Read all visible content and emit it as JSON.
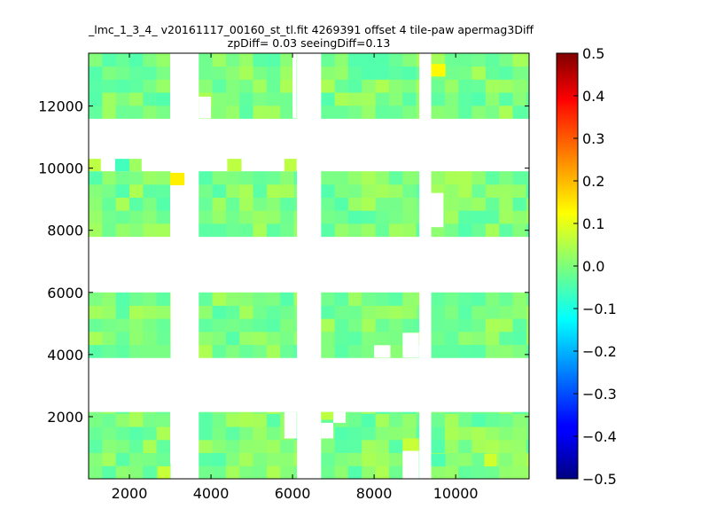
{
  "chart_data": {
    "type": "heatmap",
    "title": "_lmc_1_3_4_ v20161117_00160_st_tl.fit 4269391 offset 4 tile-paw apermag3Diff",
    "subtitle": "zpDiff= 0.03 seeingDiff=0.13",
    "xlabel": "",
    "ylabel": "",
    "xlim": [
      1000,
      11800
    ],
    "ylim": [
      0,
      13700
    ],
    "xticks": [
      2000,
      4000,
      6000,
      8000,
      10000
    ],
    "yticks": [
      2000,
      4000,
      6000,
      8000,
      10000,
      12000
    ],
    "colormap": "jet",
    "colorbar": {
      "range": [
        -0.5,
        0.5
      ],
      "ticks": [
        "0.5",
        "0.4",
        "0.3",
        "0.2",
        "0.1",
        "0.0",
        "−0.1",
        "−0.2",
        "−0.3",
        "−0.4",
        "−0.5"
      ],
      "tick_values": [
        0.5,
        0.4,
        0.3,
        0.2,
        0.1,
        0.0,
        -0.1,
        -0.2,
        -0.3,
        -0.4,
        -0.5
      ]
    },
    "base_value": 0.0,
    "tile_columns": [
      {
        "x0": 1000,
        "x1": 3000
      },
      {
        "x0": 3700,
        "x1": 6100
      },
      {
        "x0": 6700,
        "x1": 9100
      },
      {
        "x0": 9400,
        "x1": 11800
      }
    ],
    "tile_rows": [
      {
        "y0": 0,
        "y1": 2150
      },
      {
        "y0": 3900,
        "y1": 6000
      },
      {
        "y0": 7800,
        "y1": 9900
      },
      {
        "y0": 11600,
        "y1": 13700
      }
    ],
    "notches": [
      {
        "x0": 3000,
        "x1": 3400,
        "y0": 11600,
        "y1": 13700
      },
      {
        "x0": 3700,
        "x1": 4000,
        "y0": 11600,
        "y1": 12300
      },
      {
        "x0": 6000,
        "x1": 6100,
        "y0": 11600,
        "y1": 13700
      },
      {
        "x0": 3000,
        "x1": 3400,
        "y0": 500,
        "y1": 2150
      },
      {
        "x0": 5800,
        "x1": 6100,
        "y0": 1300,
        "y1": 2150
      },
      {
        "x0": 6700,
        "x1": 7000,
        "y0": 1300,
        "y1": 1800
      },
      {
        "x0": 7000,
        "x1": 7300,
        "y0": 1800,
        "y1": 2150
      },
      {
        "x0": 8700,
        "x1": 9100,
        "y0": 0,
        "y1": 900
      },
      {
        "x0": 9100,
        "x1": 9400,
        "y0": 3900,
        "y1": 4300
      },
      {
        "x0": 8000,
        "x1": 8400,
        "y0": 3900,
        "y1": 4300
      },
      {
        "x0": 8700,
        "x1": 9100,
        "y0": 3900,
        "y1": 4700
      },
      {
        "x0": 9400,
        "x1": 9700,
        "y0": 8100,
        "y1": 9200
      },
      {
        "x0": 3000,
        "x1": 3400,
        "y0": 7800,
        "y1": 9600
      }
    ],
    "highlight_cells": [
      {
        "x0": 9400,
        "x1": 9750,
        "y0": 12950,
        "y1": 13350,
        "value": 0.13
      },
      {
        "x0": 3000,
        "x1": 3350,
        "y0": 9450,
        "y1": 9850,
        "value": 0.14
      },
      {
        "x0": 1000,
        "x1": 1300,
        "y0": 9900,
        "y1": 10300,
        "value": 0.06
      },
      {
        "x0": 1650,
        "x1": 2000,
        "y0": 9900,
        "y1": 10300,
        "value": -0.06
      },
      {
        "x0": 2000,
        "x1": 2300,
        "y0": 9900,
        "y1": 10300,
        "value": 0.03
      },
      {
        "x0": 4400,
        "x1": 4750,
        "y0": 9900,
        "y1": 10300,
        "value": 0.06
      },
      {
        "x0": 5800,
        "x1": 6100,
        "y0": 9900,
        "y1": 10300,
        "value": 0.06
      },
      {
        "x0": 6700,
        "x1": 7000,
        "y0": 1900,
        "y1": 2150,
        "value": 0.06
      },
      {
        "x0": 8700,
        "x1": 9100,
        "y0": 900,
        "y1": 1300,
        "value": 0.07
      },
      {
        "x0": 9400,
        "x1": 9750,
        "y0": 400,
        "y1": 800,
        "value": -0.05
      },
      {
        "x0": 10700,
        "x1": 11000,
        "y0": 400,
        "y1": 800,
        "value": 0.08
      },
      {
        "x0": 2700,
        "x1": 3000,
        "y0": 0,
        "y1": 400,
        "value": 0.07
      }
    ]
  }
}
